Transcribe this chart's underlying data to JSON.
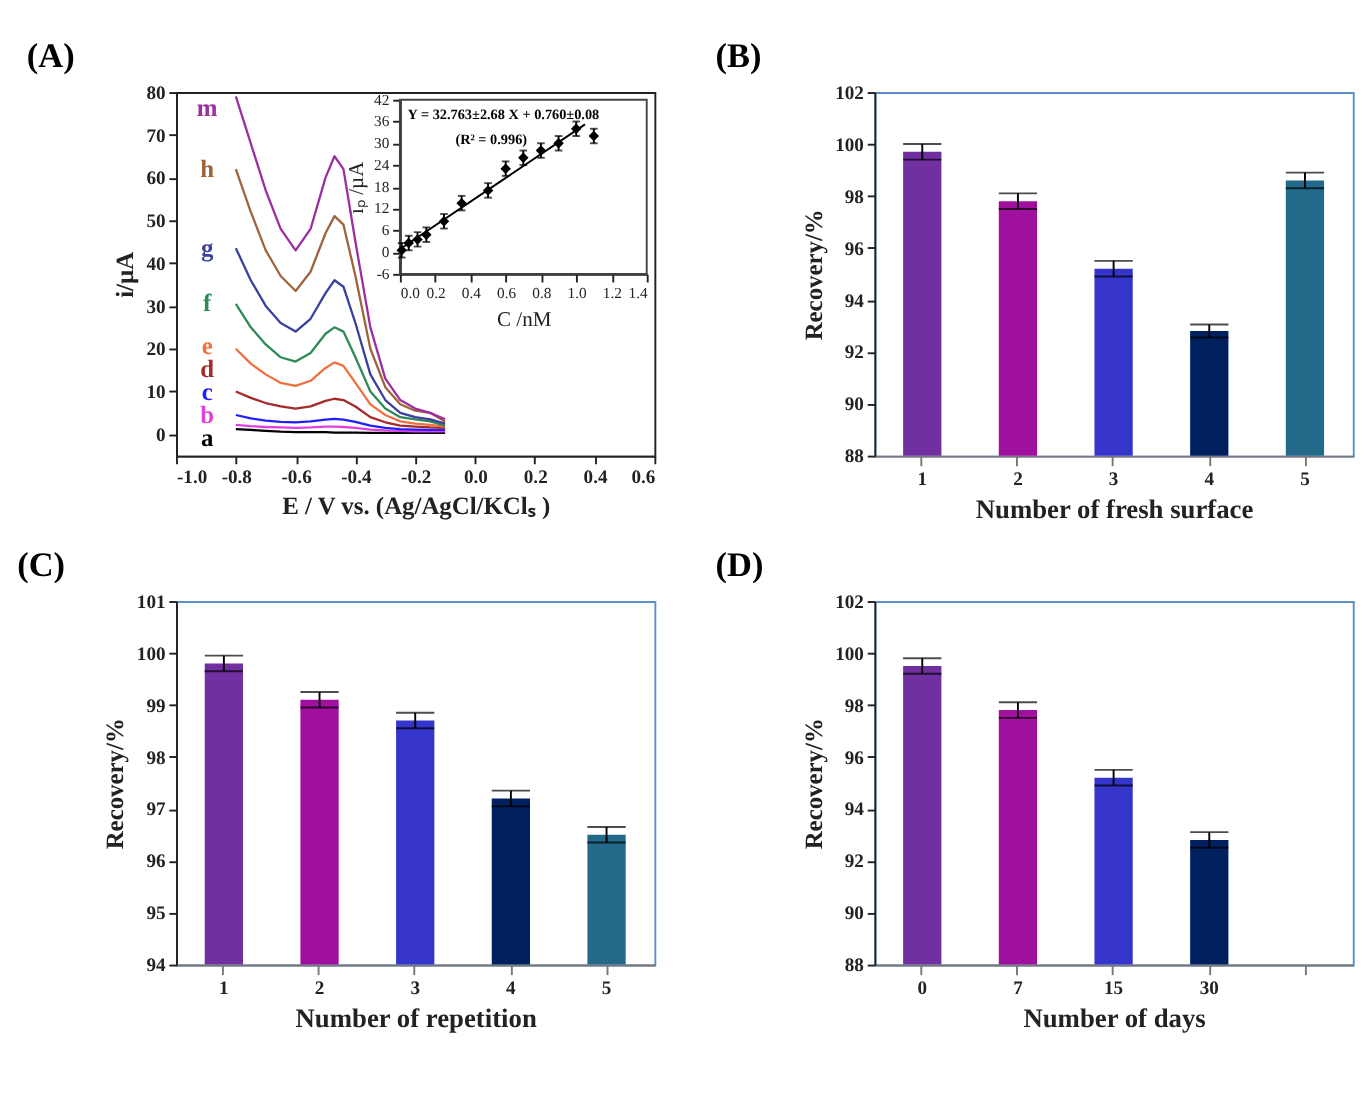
{
  "chart_data": [
    {
      "type": "line",
      "title": "(A)",
      "xlabel": "E / V vs. (Ag/AgCl/KClₛ )",
      "ylabel": "i/µA",
      "xlim": [
        -1.0,
        0.6
      ],
      "xticks": [
        {
          "value": -1.0,
          "label": "-1.0"
        },
        -0.8,
        -0.6,
        -0.4,
        -0.2,
        {
          "value": 0.0,
          "label": "0.0"
        },
        0.2,
        0.4,
        0.6
      ],
      "ylim": [
        -5,
        80
      ],
      "yticks": [
        0,
        10,
        20,
        30,
        40,
        50,
        60,
        70,
        80
      ],
      "legend": false,
      "grid": false,
      "x": [
        -0.8,
        -0.75,
        -0.7,
        -0.65,
        -0.6,
        -0.55,
        -0.5,
        -0.47,
        -0.44,
        -0.4,
        -0.35,
        -0.3,
        -0.25,
        -0.2,
        -0.15,
        -0.1
      ],
      "series": [
        {
          "name": "a",
          "color": "#000000",
          "values": [
            1.2,
            1.0,
            0.8,
            0.6,
            0.5,
            0.5,
            0.5,
            0.4,
            0.4,
            0.4,
            0.3,
            0.3,
            0.3,
            0.3,
            0.3,
            0.3
          ]
        },
        {
          "name": "b",
          "color": "#e040e0",
          "values": [
            2.2,
            1.9,
            1.7,
            1.6,
            1.5,
            1.6,
            1.8,
            1.8,
            1.7,
            1.5,
            1.1,
            0.9,
            0.8,
            0.7,
            0.7,
            0.7
          ]
        },
        {
          "name": "c",
          "color": "#2020ff",
          "values": [
            4.5,
            3.7,
            3.2,
            2.9,
            2.8,
            3.0,
            3.4,
            3.6,
            3.4,
            2.9,
            2.0,
            1.5,
            1.2,
            1.1,
            1.0,
            1.0
          ]
        },
        {
          "name": "d",
          "color": "#a52a2a",
          "values": [
            10,
            8.5,
            7.3,
            6.5,
            6,
            6.5,
            7.8,
            8.3,
            8,
            6.5,
            4,
            2.8,
            2,
            1.8,
            1.6,
            1.5
          ]
        },
        {
          "name": "e",
          "color": "#f07040",
          "values": [
            20,
            16.5,
            14,
            12,
            11.3,
            12.5,
            15.5,
            16.8,
            16,
            12,
            7,
            4.5,
            3,
            2.5,
            2.2,
            1.8
          ]
        },
        {
          "name": "f",
          "color": "#2e8b57",
          "values": [
            30.5,
            25,
            21,
            18,
            17,
            19,
            23.5,
            25,
            24,
            18,
            10,
            6,
            4,
            3.5,
            3,
            2
          ]
        },
        {
          "name": "g",
          "color": "#3b3fa0",
          "values": [
            43.5,
            36,
            30,
            26,
            24,
            27,
            33,
            36,
            34.5,
            26,
            14,
            8,
            5,
            4,
            3.5,
            2.5
          ]
        },
        {
          "name": "h",
          "color": "#a0643c",
          "values": [
            62,
            52,
            43,
            37,
            33.5,
            38,
            47,
            51,
            49,
            37,
            20,
            11,
            7,
            5.5,
            5,
            3
          ]
        },
        {
          "name": "m",
          "color": "#9b2fa0",
          "values": [
            79,
            68,
            57,
            48,
            43,
            48,
            60,
            65,
            62,
            45,
            25,
            13,
            8,
            6,
            5,
            3.5
          ]
        }
      ]
    },
    {
      "type": "scatter",
      "xlabel": "C /nM",
      "ylabel": "iₚ /µA",
      "xlim": [
        0.0,
        1.4
      ],
      "xticks": [
        {
          "value": 0.0,
          "label": "0.0"
        },
        0.2,
        0.4,
        0.6,
        0.8,
        {
          "value": 1.0,
          "label": "1.0"
        },
        1.2,
        1.4
      ],
      "ylim": [
        -6,
        42
      ],
      "yticks": [
        -6,
        0,
        6,
        12,
        18,
        24,
        30,
        36,
        42
      ],
      "grid": false,
      "annotations": [
        "Y = 32.763±2.68 X + 0.760±0.08",
        "(R² = 0.996)"
      ],
      "series": [
        {
          "color": "#000000",
          "marker": "diamond",
          "x": [
            0.01,
            0.05,
            0.1,
            0.15,
            0.25,
            0.35,
            0.5,
            0.6,
            0.7,
            0.8,
            0.9,
            1.0,
            1.1
          ],
          "values": [
            0.5,
            2.5,
            3.5,
            4.8,
            8.5,
            13.5,
            17,
            23,
            26,
            28,
            30,
            34,
            32
          ],
          "errors": [
            2,
            2,
            2,
            2,
            2,
            2,
            2,
            2,
            2,
            2,
            2,
            2,
            2
          ]
        },
        {
          "type": "line",
          "color": "#000000",
          "x": [
            0.0,
            1.05
          ],
          "values": [
            0.8,
            35.2
          ]
        }
      ]
    },
    {
      "type": "bar",
      "title": "(B)",
      "xlabel": "Number of fresh surface",
      "ylabel": "Recovery/%",
      "categories": [
        "1",
        "2",
        "3",
        "4",
        "5"
      ],
      "values": [
        99.7,
        97.8,
        95.2,
        92.8,
        98.6
      ],
      "errors": [
        0.3,
        0.3,
        0.3,
        0.25,
        0.3
      ],
      "colors": [
        "#7030a0",
        "#a0109f",
        "#3535cc",
        "#002060",
        "#236a8a"
      ],
      "ylim": [
        88,
        102
      ],
      "yticks": [
        88,
        90,
        92,
        94,
        96,
        98,
        100,
        102
      ],
      "grid": false,
      "legend": false
    },
    {
      "type": "bar",
      "title": "(C)",
      "xlabel": "Number of repetition",
      "ylabel": "Recovery/%",
      "categories": [
        "1",
        "2",
        "3",
        "4",
        "5"
      ],
      "values": [
        99.8,
        99.1,
        98.7,
        97.2,
        96.5
      ],
      "errors": [
        0.15,
        0.15,
        0.15,
        0.15,
        0.15
      ],
      "colors": [
        "#7030a0",
        "#a0109f",
        "#3535cc",
        "#002060",
        "#236a8a"
      ],
      "ylim": [
        94,
        101
      ],
      "yticks": [
        94,
        95,
        96,
        97,
        98,
        99,
        100,
        101
      ],
      "grid": false,
      "legend": false
    },
    {
      "type": "bar",
      "title": "(D)",
      "xlabel": "Number of days",
      "ylabel": "Recovery/%",
      "categories": [
        "0",
        "7",
        "15",
        "30",
        null
      ],
      "values": [
        99.5,
        97.8,
        95.2,
        92.8,
        null
      ],
      "errors": [
        0.3,
        0.3,
        0.3,
        0.3,
        null
      ],
      "colors": [
        "#7030a0",
        "#a0109f",
        "#3535cc",
        "#002060",
        null
      ],
      "ylim": [
        88,
        102
      ],
      "yticks": [
        88,
        90,
        92,
        94,
        96,
        98,
        100,
        102
      ],
      "grid": false,
      "legend": false
    }
  ]
}
